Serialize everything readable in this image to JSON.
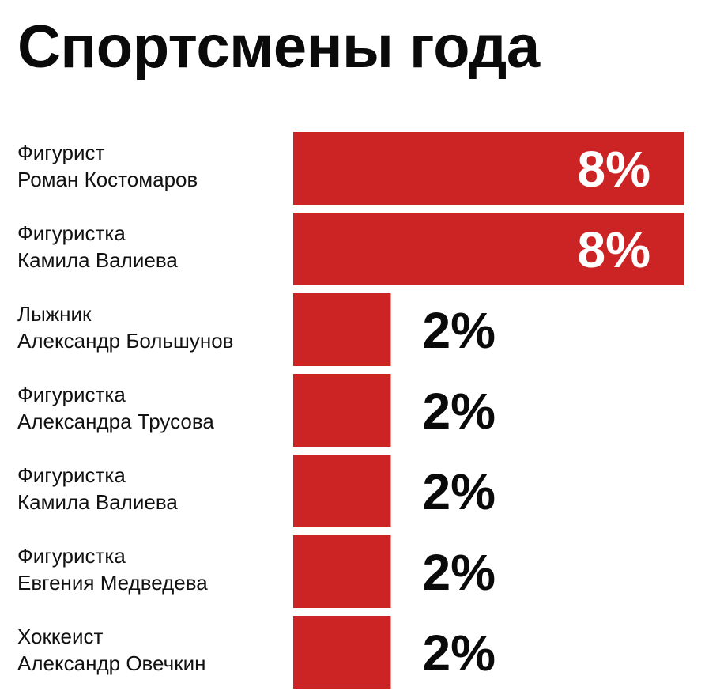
{
  "chart_data": {
    "type": "bar",
    "orientation": "horizontal",
    "title": "Спортсмены года",
    "categories": [
      [
        "Фигурист",
        "Роман Костомаров"
      ],
      [
        "Фигуристка",
        "Камила Валиева"
      ],
      [
        "Лыжник",
        "Александр Большунов"
      ],
      [
        "Фигуристка",
        "Александра Трусова"
      ],
      [
        "Фигуристка",
        "Камила Валиева"
      ],
      [
        "Фигуристка",
        "Евгения Медведева"
      ],
      [
        "Хоккеист",
        "Александр Овечкин"
      ]
    ],
    "values": [
      8,
      8,
      2,
      2,
      2,
      2,
      2
    ],
    "value_labels": [
      "8%",
      "8%",
      "2%",
      "2%",
      "2%",
      "2%",
      "2%"
    ],
    "xlim": [
      0,
      8
    ],
    "grid": false,
    "bar_color": "#cc2424",
    "label_inside_color": "#ffffff",
    "label_outside_color": "#0a0a0a"
  }
}
